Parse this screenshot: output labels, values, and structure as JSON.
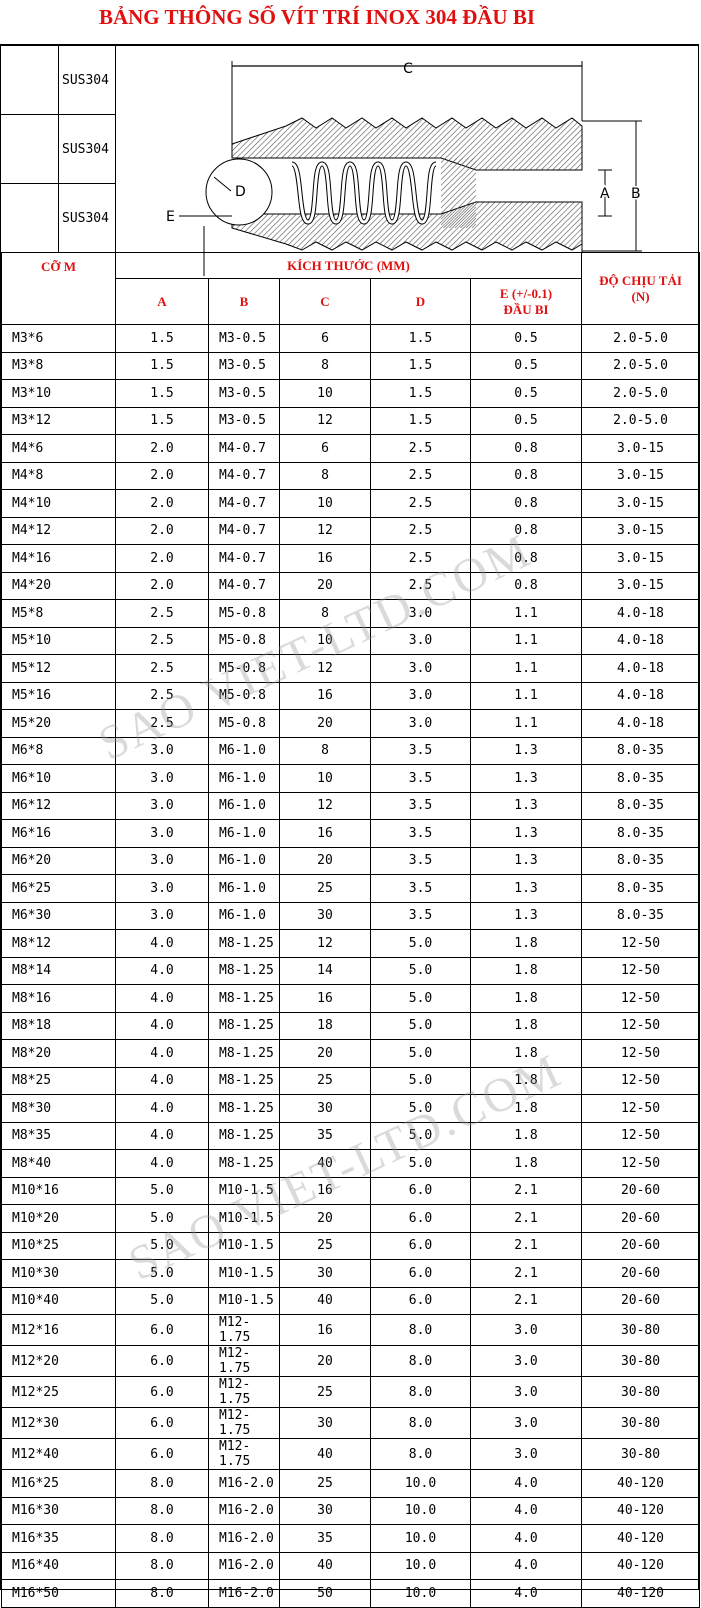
{
  "title": "BẢNG THÔNG SỐ VÍT TRÍ INOX 304 ĐẦU BI",
  "material_labels": [
    "SUS304",
    "SUS304",
    "SUS304"
  ],
  "diagram_labels": {
    "c": "C",
    "d": "D",
    "e": "E",
    "a": "A",
    "b": "B"
  },
  "header": {
    "size": "CỠ M",
    "dimensions": "KÍCH THƯỚC (MM)",
    "a": "A",
    "b": "B",
    "c": "C",
    "d": "D",
    "e": "E (+/-0.1)",
    "e_sub": "ĐẦU BI",
    "load": "ĐỘ CHỊU TẢI",
    "load_unit": "(N)"
  },
  "watermark": "SAO VIET-LTD.COM",
  "rows": [
    [
      "M3*6",
      "1.5",
      "M3-0.5",
      "6",
      "1.5",
      "0.5",
      "2.0-5.0"
    ],
    [
      "M3*8",
      "1.5",
      "M3-0.5",
      "8",
      "1.5",
      "0.5",
      "2.0-5.0"
    ],
    [
      "M3*10",
      "1.5",
      "M3-0.5",
      "10",
      "1.5",
      "0.5",
      "2.0-5.0"
    ],
    [
      "M3*12",
      "1.5",
      "M3-0.5",
      "12",
      "1.5",
      "0.5",
      "2.0-5.0"
    ],
    [
      "M4*6",
      "2.0",
      "M4-0.7",
      "6",
      "2.5",
      "0.8",
      "3.0-15"
    ],
    [
      "M4*8",
      "2.0",
      "M4-0.7",
      "8",
      "2.5",
      "0.8",
      "3.0-15"
    ],
    [
      "M4*10",
      "2.0",
      "M4-0.7",
      "10",
      "2.5",
      "0.8",
      "3.0-15"
    ],
    [
      "M4*12",
      "2.0",
      "M4-0.7",
      "12",
      "2.5",
      "0.8",
      "3.0-15"
    ],
    [
      "M4*16",
      "2.0",
      "M4-0.7",
      "16",
      "2.5",
      "0.8",
      "3.0-15"
    ],
    [
      "M4*20",
      "2.0",
      "M4-0.7",
      "20",
      "2.5",
      "0.8",
      "3.0-15"
    ],
    [
      "M5*8",
      "2.5",
      "M5-0.8",
      "8",
      "3.0",
      "1.1",
      "4.0-18"
    ],
    [
      "M5*10",
      "2.5",
      "M5-0.8",
      "10",
      "3.0",
      "1.1",
      "4.0-18"
    ],
    [
      "M5*12",
      "2.5",
      "M5-0.8",
      "12",
      "3.0",
      "1.1",
      "4.0-18"
    ],
    [
      "M5*16",
      "2.5",
      "M5-0.8",
      "16",
      "3.0",
      "1.1",
      "4.0-18"
    ],
    [
      "M5*20",
      "2.5",
      "M5-0.8",
      "20",
      "3.0",
      "1.1",
      "4.0-18"
    ],
    [
      "M6*8",
      "3.0",
      "M6-1.0",
      "8",
      "3.5",
      "1.3",
      "8.0-35"
    ],
    [
      "M6*10",
      "3.0",
      "M6-1.0",
      "10",
      "3.5",
      "1.3",
      "8.0-35"
    ],
    [
      "M6*12",
      "3.0",
      "M6-1.0",
      "12",
      "3.5",
      "1.3",
      "8.0-35"
    ],
    [
      "M6*16",
      "3.0",
      "M6-1.0",
      "16",
      "3.5",
      "1.3",
      "8.0-35"
    ],
    [
      "M6*20",
      "3.0",
      "M6-1.0",
      "20",
      "3.5",
      "1.3",
      "8.0-35"
    ],
    [
      "M6*25",
      "3.0",
      "M6-1.0",
      "25",
      "3.5",
      "1.3",
      "8.0-35"
    ],
    [
      "M6*30",
      "3.0",
      "M6-1.0",
      "30",
      "3.5",
      "1.3",
      "8.0-35"
    ],
    [
      "M8*12",
      "4.0",
      "M8-1.25",
      "12",
      "5.0",
      "1.8",
      "12-50"
    ],
    [
      "M8*14",
      "4.0",
      "M8-1.25",
      "14",
      "5.0",
      "1.8",
      "12-50"
    ],
    [
      "M8*16",
      "4.0",
      "M8-1.25",
      "16",
      "5.0",
      "1.8",
      "12-50"
    ],
    [
      "M8*18",
      "4.0",
      "M8-1.25",
      "18",
      "5.0",
      "1.8",
      "12-50"
    ],
    [
      "M8*20",
      "4.0",
      "M8-1.25",
      "20",
      "5.0",
      "1.8",
      "12-50"
    ],
    [
      "M8*25",
      "4.0",
      "M8-1.25",
      "25",
      "5.0",
      "1.8",
      "12-50"
    ],
    [
      "M8*30",
      "4.0",
      "M8-1.25",
      "30",
      "5.0",
      "1.8",
      "12-50"
    ],
    [
      "M8*35",
      "4.0",
      "M8-1.25",
      "35",
      "5.0",
      "1.8",
      "12-50"
    ],
    [
      "M8*40",
      "4.0",
      "M8-1.25",
      "40",
      "5.0",
      "1.8",
      "12-50"
    ],
    [
      "M10*16",
      "5.0",
      "M10-1.5",
      "16",
      "6.0",
      "2.1",
      "20-60"
    ],
    [
      "M10*20",
      "5.0",
      "M10-1.5",
      "20",
      "6.0",
      "2.1",
      "20-60"
    ],
    [
      "M10*25",
      "5.0",
      "M10-1.5",
      "25",
      "6.0",
      "2.1",
      "20-60"
    ],
    [
      "M10*30",
      "5.0",
      "M10-1.5",
      "30",
      "6.0",
      "2.1",
      "20-60"
    ],
    [
      "M10*40",
      "5.0",
      "M10-1.5",
      "40",
      "6.0",
      "2.1",
      "20-60"
    ],
    [
      "M12*16",
      "6.0",
      "M12-1.75",
      "16",
      "8.0",
      "3.0",
      "30-80"
    ],
    [
      "M12*20",
      "6.0",
      "M12-1.75",
      "20",
      "8.0",
      "3.0",
      "30-80"
    ],
    [
      "M12*25",
      "6.0",
      "M12-1.75",
      "25",
      "8.0",
      "3.0",
      "30-80"
    ],
    [
      "M12*30",
      "6.0",
      "M12-1.75",
      "30",
      "8.0",
      "3.0",
      "30-80"
    ],
    [
      "M12*40",
      "6.0",
      "M12-1.75",
      "40",
      "8.0",
      "3.0",
      "30-80"
    ],
    [
      "M16*25",
      "8.0",
      "M16-2.0",
      "25",
      "10.0",
      "4.0",
      "40-120"
    ],
    [
      "M16*30",
      "8.0",
      "M16-2.0",
      "30",
      "10.0",
      "4.0",
      "40-120"
    ],
    [
      "M16*35",
      "8.0",
      "M16-2.0",
      "35",
      "10.0",
      "4.0",
      "40-120"
    ],
    [
      "M16*40",
      "8.0",
      "M16-2.0",
      "40",
      "10.0",
      "4.0",
      "40-120"
    ],
    [
      "M16*50",
      "8.0",
      "M16-2.0",
      "50",
      "10.0",
      "4.0",
      "40-120"
    ]
  ]
}
